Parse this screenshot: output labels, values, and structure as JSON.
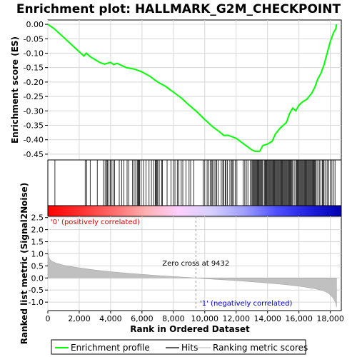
{
  "chart_data": {
    "type": "line",
    "title": "Enrichment plot: HALLMARK_G2M_CHECKPOINT",
    "xlabel": "Rank in Ordered Dataset",
    "xlim": [
      0,
      18700
    ],
    "x_ticks": [
      0,
      2000,
      4000,
      6000,
      8000,
      10000,
      12000,
      14000,
      16000,
      18000
    ],
    "x_tick_labels": [
      "0",
      "2,000",
      "4,000",
      "6,000",
      "8,000",
      "10,000",
      "12,000",
      "14,000",
      "16,000",
      "18,000"
    ],
    "es_panel": {
      "ylabel": "Enrichment score (ES)",
      "ylim": [
        -0.47,
        0.015
      ],
      "y_ticks": [
        0.0,
        -0.05,
        -0.1,
        -0.15,
        -0.2,
        -0.25,
        -0.3,
        -0.35,
        -0.4,
        -0.45
      ],
      "y_tick_labels": [
        "0.00",
        "-0.05",
        "-0.10",
        "-0.15",
        "-0.20",
        "-0.25",
        "-0.30",
        "-0.35",
        "-0.40",
        "-0.45"
      ],
      "grid": true,
      "series": [
        {
          "name": "Enrichment profile",
          "color": "#00ff00",
          "x": [
            0,
            400,
            1000,
            1500,
            2000,
            2300,
            2450,
            2700,
            3000,
            3300,
            3600,
            3800,
            4000,
            4200,
            4400,
            4600,
            4800,
            5000,
            5200,
            5500,
            6000,
            6500,
            7000,
            7500,
            8000,
            8500,
            9000,
            9432,
            10000,
            10500,
            11000,
            11200,
            11500,
            12000,
            12500,
            13000,
            13200,
            13500,
            13700,
            14000,
            14300,
            14500,
            14800,
            15000,
            15200,
            15400,
            15600,
            15800,
            16000,
            16200,
            16500,
            16800,
            17000,
            17200,
            17400,
            17600,
            17800,
            18000,
            18200,
            18350,
            18400
          ],
          "y": [
            0.0,
            -0.015,
            -0.045,
            -0.07,
            -0.095,
            -0.11,
            -0.1,
            -0.112,
            -0.122,
            -0.132,
            -0.138,
            -0.135,
            -0.132,
            -0.14,
            -0.135,
            -0.14,
            -0.145,
            -0.15,
            -0.152,
            -0.155,
            -0.165,
            -0.18,
            -0.2,
            -0.215,
            -0.235,
            -0.255,
            -0.28,
            -0.3,
            -0.33,
            -0.355,
            -0.375,
            -0.385,
            -0.385,
            -0.395,
            -0.415,
            -0.435,
            -0.44,
            -0.44,
            -0.42,
            -0.415,
            -0.405,
            -0.38,
            -0.36,
            -0.35,
            -0.34,
            -0.31,
            -0.29,
            -0.3,
            -0.28,
            -0.27,
            -0.26,
            -0.24,
            -0.22,
            -0.19,
            -0.17,
            -0.14,
            -0.1,
            -0.06,
            -0.03,
            -0.015,
            0.0
          ]
        }
      ]
    },
    "hits_panel": {
      "legend_label": "Hits",
      "color": "#000000",
      "hit_ranks": [
        450,
        2380,
        2480,
        2700,
        3150,
        3550,
        3650,
        3750,
        3800,
        3900,
        3980,
        4050,
        4150,
        4250,
        4550,
        4700,
        4850,
        5050,
        5150,
        5400,
        5500,
        5600,
        5700,
        5750,
        5800,
        5850,
        5950,
        6100,
        6250,
        6450,
        6600,
        6750,
        6850,
        6900,
        6950,
        7000,
        7100,
        7250,
        7300,
        7600,
        7850,
        8000,
        8100,
        8250,
        8350,
        8500,
        8600,
        8800,
        9000,
        9100,
        9300,
        9900,
        10000,
        10150,
        10250,
        10350,
        10450,
        10500,
        10600,
        10700,
        10750,
        10850,
        11050,
        11150,
        11200,
        11300,
        11350,
        11450,
        11600,
        11700,
        11750,
        11850,
        11950,
        12050,
        12450,
        12550,
        12650,
        12750,
        12900,
        13000,
        13050,
        13100,
        13150,
        13200,
        13250,
        13300,
        13350,
        13400,
        13450,
        13500,
        13550,
        13600,
        13650,
        13700,
        13800,
        13850,
        13900,
        13950,
        14000,
        14050,
        14100,
        14150,
        14200,
        14250,
        14300,
        14350,
        14400,
        14450,
        14500,
        14550,
        14600,
        14650,
        14700,
        14750,
        14800,
        14850,
        14900,
        14950,
        15000,
        15050,
        15100,
        15150,
        15200,
        15250,
        15300,
        15350,
        15400,
        15450,
        15500,
        15550,
        15600,
        15700,
        15800,
        15850,
        15900,
        15950,
        16000,
        16050,
        16100,
        16150,
        16200,
        16250,
        16300,
        16350,
        16400,
        16450,
        16500,
        16550,
        16600,
        16650,
        16700,
        16750,
        16800,
        16850,
        16900,
        16950,
        17000,
        17050,
        17100,
        17200,
        17300,
        17400,
        17500,
        17550,
        17600,
        17700,
        17800,
        17900,
        18000,
        18100,
        18200,
        18300
      ]
    },
    "ranked_panel": {
      "ylabel": "Ranked list metric (Signal2Noise)",
      "legend_label": "Ranking metric scores",
      "ylim": [
        -1.35,
        2.55
      ],
      "y_ticks": [
        2.5,
        2.0,
        1.5,
        1.0,
        0.5,
        0.0,
        -0.5,
        -1.0
      ],
      "y_tick_labels": [
        "2.5",
        "2.0",
        "1.5",
        "1.0",
        "0.5",
        "0.0",
        "-0.5",
        "-1.0"
      ],
      "grid": true,
      "fill_color": "#c0c0c0",
      "x": [
        0,
        20,
        60,
        120,
        250,
        500,
        1000,
        2000,
        3000,
        4000,
        5000,
        6000,
        7000,
        8000,
        9000,
        9432,
        10000,
        11000,
        12000,
        13000,
        14000,
        15000,
        16000,
        17000,
        17500,
        17800,
        18000,
        18200,
        18350,
        18400
      ],
      "values": [
        1.2,
        1.0,
        0.88,
        0.78,
        0.7,
        0.62,
        0.53,
        0.42,
        0.33,
        0.26,
        0.2,
        0.15,
        0.1,
        0.06,
        0.02,
        0.0,
        -0.03,
        -0.07,
        -0.11,
        -0.16,
        -0.21,
        -0.27,
        -0.34,
        -0.44,
        -0.52,
        -0.6,
        -0.7,
        -0.85,
        -1.05,
        -1.2
      ],
      "zero_cross_rank": 9432,
      "annotations": {
        "zero_cross": "Zero cross at 9432",
        "positive": "'0' (positively correlated)",
        "negative": "'1' (negatively correlated)"
      }
    },
    "colorbar": {
      "colors": [
        "#ff0000",
        "#ff3030",
        "#ff6b6b",
        "#ffb0b0",
        "#ffd0ff",
        "#d6d0ff",
        "#a0a0ff",
        "#5050ff",
        "#2020e0",
        "#0000b0"
      ]
    },
    "legend": {
      "placement": "bottom",
      "items": [
        {
          "label": "Enrichment profile",
          "color": "#00ff00"
        },
        {
          "label": "Hits",
          "color": "#000000"
        },
        {
          "label": "Ranking metric scores",
          "color": "#c0c0c0"
        }
      ]
    }
  }
}
